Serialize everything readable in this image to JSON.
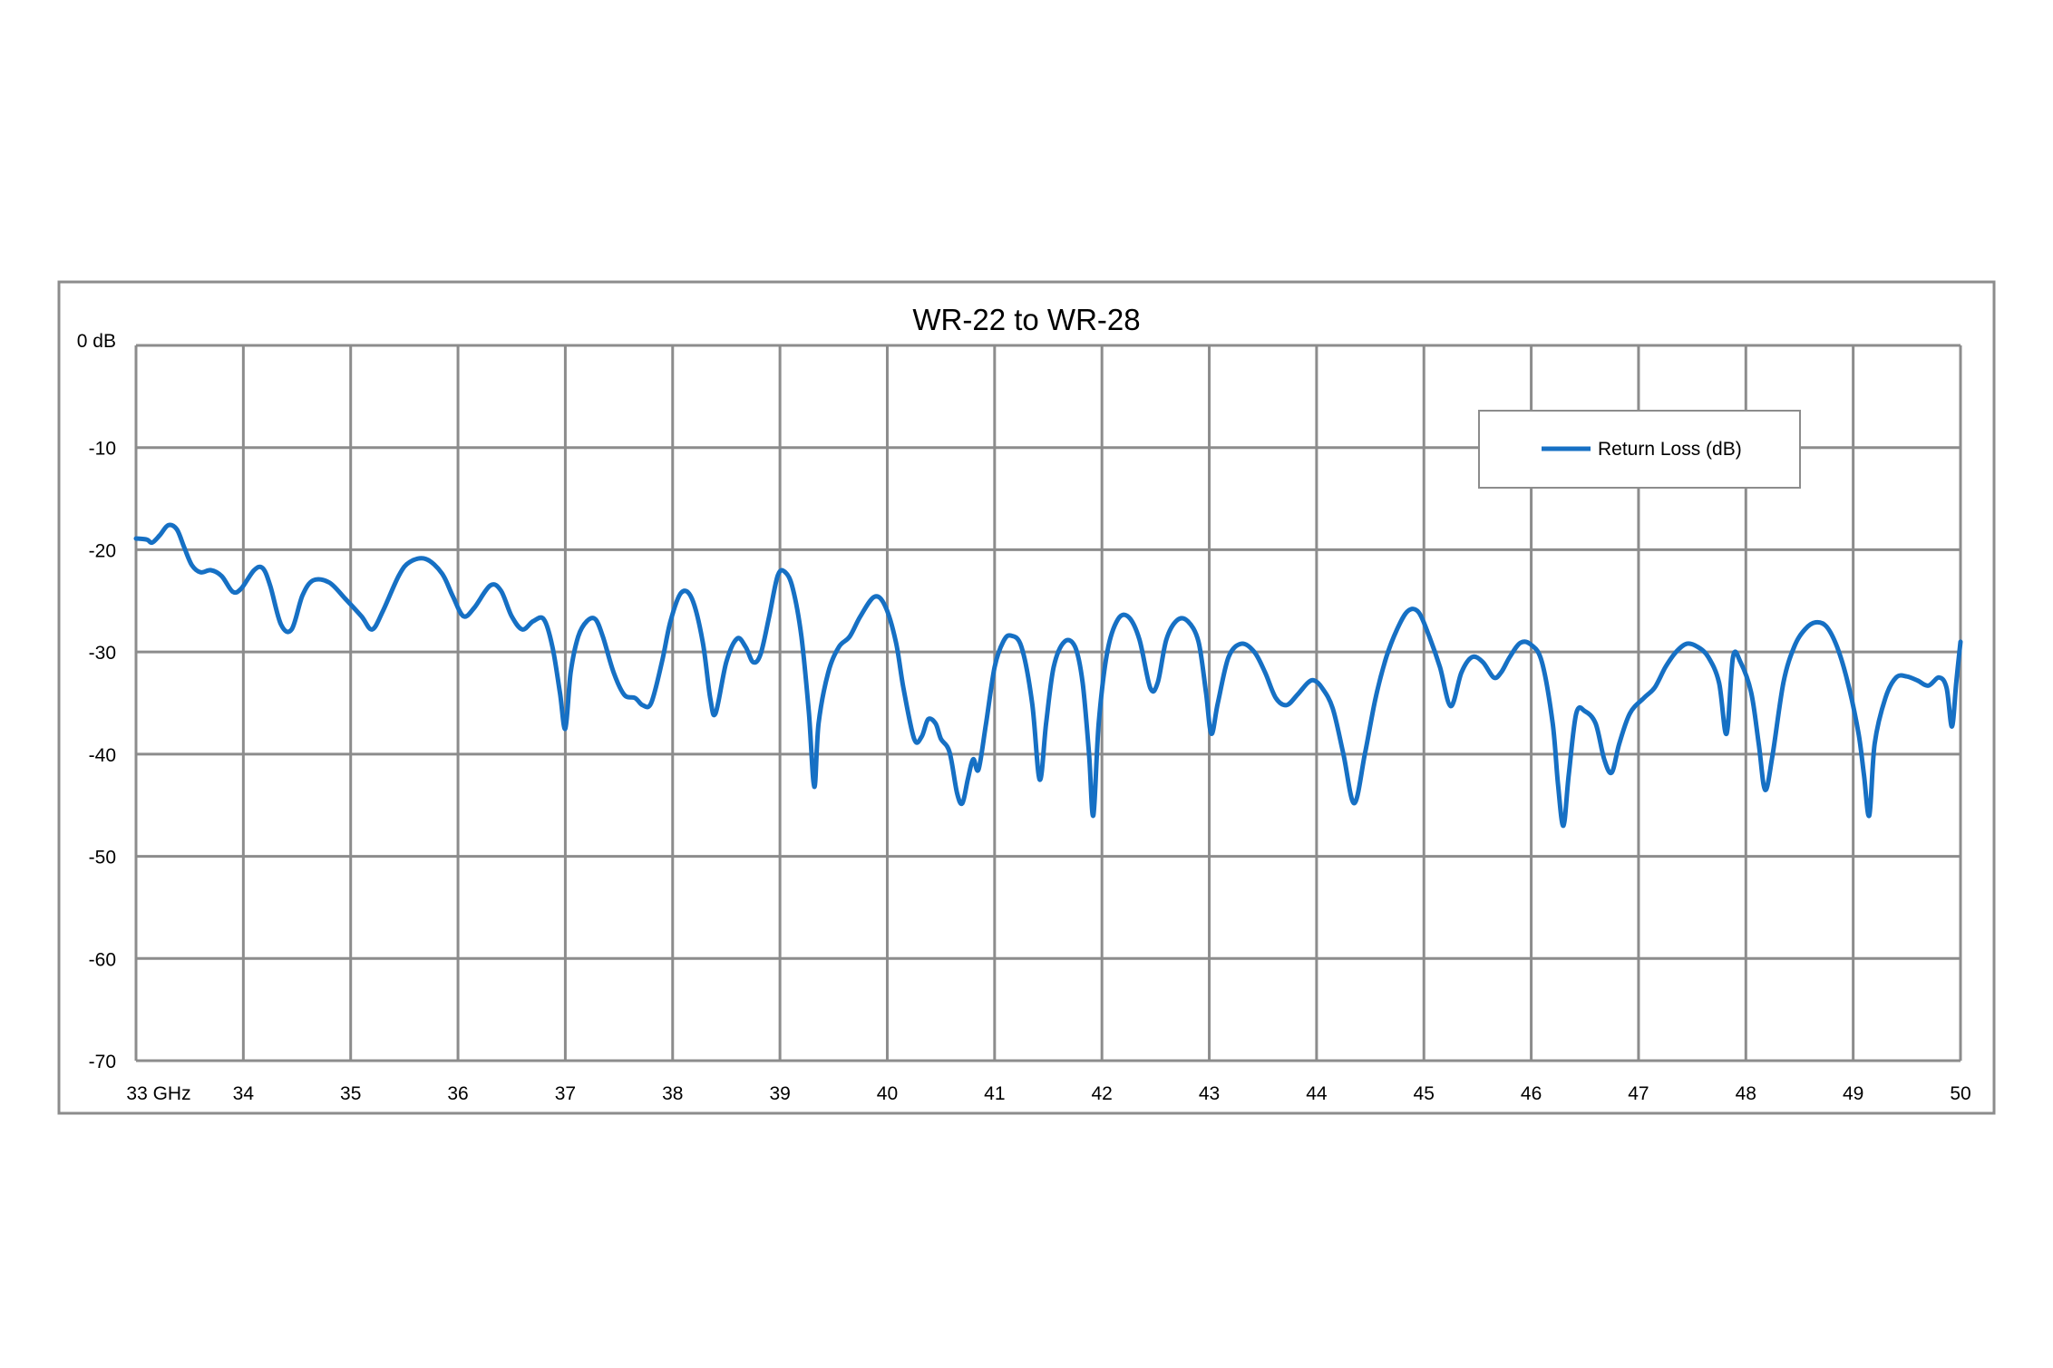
{
  "colors": {
    "series": "#1670c4",
    "grid": "#8c8c8c",
    "frame": "#8c8c8c"
  },
  "chart_data": {
    "type": "line",
    "title": "WR-22 to WR-28",
    "xlim": [
      33,
      50
    ],
    "ylim": [
      -70,
      0
    ],
    "grid": true,
    "legend_position": "top-right",
    "x_tick_labels": [
      "33 GHz",
      "34",
      "35",
      "36",
      "37",
      "38",
      "39",
      "40",
      "41",
      "42",
      "43",
      "44",
      "45",
      "46",
      "47",
      "48",
      "49",
      "50"
    ],
    "y_tick_labels": [
      "0 dB",
      "-10",
      "-20",
      "-30",
      "-40",
      "-50",
      "-60",
      "-70"
    ],
    "series": [
      {
        "name": "Return Loss (dB)",
        "points": [
          [
            33.0,
            -18.9
          ],
          [
            33.1,
            -19.0
          ],
          [
            33.15,
            -19.3
          ],
          [
            33.22,
            -18.6
          ],
          [
            33.3,
            -17.6
          ],
          [
            33.38,
            -18.0
          ],
          [
            33.45,
            -19.8
          ],
          [
            33.52,
            -21.5
          ],
          [
            33.6,
            -22.2
          ],
          [
            33.7,
            -22.0
          ],
          [
            33.8,
            -22.6
          ],
          [
            33.9,
            -24.1
          ],
          [
            33.98,
            -23.8
          ],
          [
            34.1,
            -22.0
          ],
          [
            34.18,
            -21.8
          ],
          [
            34.25,
            -23.5
          ],
          [
            34.35,
            -27.3
          ],
          [
            34.45,
            -27.8
          ],
          [
            34.55,
            -24.5
          ],
          [
            34.65,
            -23.0
          ],
          [
            34.8,
            -23.2
          ],
          [
            34.95,
            -24.8
          ],
          [
            35.1,
            -26.5
          ],
          [
            35.2,
            -27.8
          ],
          [
            35.3,
            -26.0
          ],
          [
            35.45,
            -22.5
          ],
          [
            35.55,
            -21.2
          ],
          [
            35.7,
            -20.9
          ],
          [
            35.85,
            -22.3
          ],
          [
            35.95,
            -24.5
          ],
          [
            36.05,
            -26.5
          ],
          [
            36.15,
            -25.7
          ],
          [
            36.3,
            -23.5
          ],
          [
            36.4,
            -24.0
          ],
          [
            36.5,
            -26.5
          ],
          [
            36.6,
            -27.8
          ],
          [
            36.7,
            -27.0
          ],
          [
            36.8,
            -26.8
          ],
          [
            36.88,
            -29.5
          ],
          [
            36.95,
            -34.0
          ],
          [
            37.0,
            -37.5
          ],
          [
            37.05,
            -32.0
          ],
          [
            37.12,
            -28.5
          ],
          [
            37.2,
            -27.0
          ],
          [
            37.28,
            -26.8
          ],
          [
            37.35,
            -28.5
          ],
          [
            37.45,
            -32.0
          ],
          [
            37.55,
            -34.2
          ],
          [
            37.65,
            -34.5
          ],
          [
            37.72,
            -35.2
          ],
          [
            37.8,
            -35.0
          ],
          [
            37.9,
            -31.0
          ],
          [
            37.98,
            -27.0
          ],
          [
            38.08,
            -24.2
          ],
          [
            38.18,
            -24.8
          ],
          [
            38.28,
            -29.0
          ],
          [
            38.35,
            -34.5
          ],
          [
            38.4,
            -36.0
          ],
          [
            38.5,
            -31.0
          ],
          [
            38.6,
            -28.7
          ],
          [
            38.68,
            -29.5
          ],
          [
            38.75,
            -31.0
          ],
          [
            38.82,
            -30.2
          ],
          [
            38.9,
            -26.5
          ],
          [
            38.98,
            -22.5
          ],
          [
            39.05,
            -22.2
          ],
          [
            39.12,
            -23.8
          ],
          [
            39.2,
            -28.5
          ],
          [
            39.27,
            -36.0
          ],
          [
            39.32,
            -43.2
          ],
          [
            39.36,
            -37.0
          ],
          [
            39.45,
            -32.0
          ],
          [
            39.55,
            -29.5
          ],
          [
            39.65,
            -28.5
          ],
          [
            39.75,
            -26.5
          ],
          [
            39.88,
            -24.6
          ],
          [
            39.98,
            -25.5
          ],
          [
            40.08,
            -29.0
          ],
          [
            40.15,
            -33.5
          ],
          [
            40.25,
            -38.5
          ],
          [
            40.32,
            -38.3
          ],
          [
            40.38,
            -36.6
          ],
          [
            40.45,
            -37.0
          ],
          [
            40.5,
            -38.5
          ],
          [
            40.58,
            -39.8
          ],
          [
            40.65,
            -43.8
          ],
          [
            40.7,
            -44.8
          ],
          [
            40.75,
            -42.5
          ],
          [
            40.8,
            -40.5
          ],
          [
            40.85,
            -41.5
          ],
          [
            40.92,
            -37.0
          ],
          [
            41.0,
            -31.5
          ],
          [
            41.08,
            -29.0
          ],
          [
            41.15,
            -28.4
          ],
          [
            41.25,
            -29.5
          ],
          [
            41.35,
            -35.0
          ],
          [
            41.42,
            -42.5
          ],
          [
            41.48,
            -37.0
          ],
          [
            41.55,
            -31.5
          ],
          [
            41.65,
            -29.0
          ],
          [
            41.75,
            -29.5
          ],
          [
            41.82,
            -33.0
          ],
          [
            41.88,
            -40.0
          ],
          [
            41.92,
            -46.0
          ],
          [
            41.97,
            -37.0
          ],
          [
            42.05,
            -30.0
          ],
          [
            42.15,
            -26.8
          ],
          [
            42.25,
            -26.6
          ],
          [
            42.35,
            -28.8
          ],
          [
            42.45,
            -33.5
          ],
          [
            42.52,
            -33.0
          ],
          [
            42.6,
            -28.8
          ],
          [
            42.7,
            -26.9
          ],
          [
            42.8,
            -27.0
          ],
          [
            42.9,
            -29.0
          ],
          [
            42.97,
            -34.0
          ],
          [
            43.02,
            -38.0
          ],
          [
            43.08,
            -35.0
          ],
          [
            43.18,
            -30.5
          ],
          [
            43.3,
            -29.2
          ],
          [
            43.42,
            -30.0
          ],
          [
            43.52,
            -32.0
          ],
          [
            43.62,
            -34.5
          ],
          [
            43.72,
            -35.2
          ],
          [
            43.82,
            -34.2
          ],
          [
            43.92,
            -33.0
          ],
          [
            43.98,
            -32.8
          ],
          [
            44.05,
            -33.5
          ],
          [
            44.15,
            -35.5
          ],
          [
            44.25,
            -40.0
          ],
          [
            44.35,
            -44.8
          ],
          [
            44.45,
            -40.0
          ],
          [
            44.55,
            -34.5
          ],
          [
            44.65,
            -30.5
          ],
          [
            44.75,
            -27.8
          ],
          [
            44.85,
            -26.0
          ],
          [
            44.95,
            -26.1
          ],
          [
            45.05,
            -28.5
          ],
          [
            45.15,
            -31.5
          ],
          [
            45.25,
            -35.3
          ],
          [
            45.35,
            -32.0
          ],
          [
            45.45,
            -30.5
          ],
          [
            45.55,
            -31.0
          ],
          [
            45.65,
            -32.5
          ],
          [
            45.72,
            -32.0
          ],
          [
            45.8,
            -30.5
          ],
          [
            45.9,
            -29.1
          ],
          [
            46.0,
            -29.3
          ],
          [
            46.1,
            -31.0
          ],
          [
            46.2,
            -37.0
          ],
          [
            46.25,
            -43.0
          ],
          [
            46.3,
            -47.0
          ],
          [
            46.35,
            -42.0
          ],
          [
            46.42,
            -36.0
          ],
          [
            46.5,
            -35.8
          ],
          [
            46.6,
            -37.0
          ],
          [
            46.68,
            -40.5
          ],
          [
            46.75,
            -41.8
          ],
          [
            46.82,
            -39.0
          ],
          [
            46.92,
            -36.0
          ],
          [
            47.05,
            -34.5
          ],
          [
            47.15,
            -33.5
          ],
          [
            47.25,
            -31.5
          ],
          [
            47.35,
            -30.0
          ],
          [
            47.45,
            -29.2
          ],
          [
            47.55,
            -29.5
          ],
          [
            47.65,
            -30.5
          ],
          [
            47.75,
            -33.0
          ],
          [
            47.82,
            -38.0
          ],
          [
            47.88,
            -30.5
          ],
          [
            47.95,
            -31.0
          ],
          [
            48.05,
            -34.0
          ],
          [
            48.12,
            -39.0
          ],
          [
            48.18,
            -43.5
          ],
          [
            48.25,
            -40.0
          ],
          [
            48.35,
            -33.0
          ],
          [
            48.45,
            -29.5
          ],
          [
            48.55,
            -27.8
          ],
          [
            48.65,
            -27.1
          ],
          [
            48.75,
            -27.5
          ],
          [
            48.85,
            -29.5
          ],
          [
            48.95,
            -33.0
          ],
          [
            49.05,
            -38.0
          ],
          [
            49.1,
            -42.0
          ],
          [
            49.15,
            -46.0
          ],
          [
            49.2,
            -39.0
          ],
          [
            49.3,
            -34.5
          ],
          [
            49.4,
            -32.5
          ],
          [
            49.5,
            -32.4
          ],
          [
            49.6,
            -32.8
          ],
          [
            49.7,
            -33.3
          ],
          [
            49.8,
            -32.5
          ],
          [
            49.87,
            -33.5
          ],
          [
            49.92,
            -37.3
          ],
          [
            49.96,
            -33.0
          ],
          [
            50.0,
            -29.0
          ]
        ]
      }
    ]
  }
}
